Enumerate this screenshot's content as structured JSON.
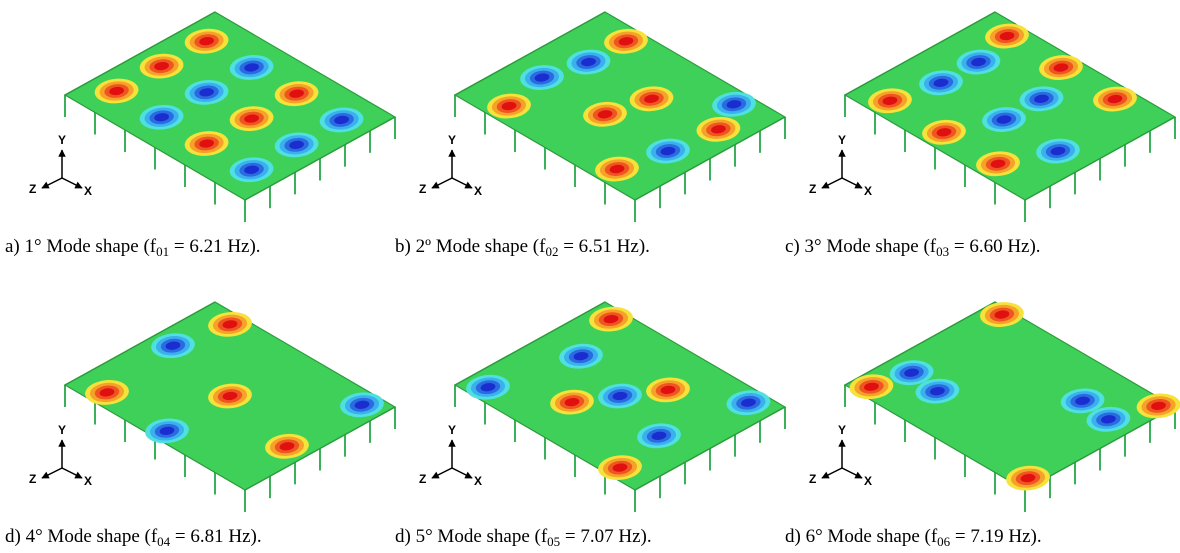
{
  "panels": [
    {
      "caption_prefix": "a) 1° Mode shape (f",
      "caption_sub": "01",
      "caption_suffix": " = 6.21 Hz)."
    },
    {
      "caption_prefix": "b) 2º Mode shape (f",
      "caption_sub": "02",
      "caption_suffix": " = 6.51 Hz)."
    },
    {
      "caption_prefix": "c) 3° Mode shape (f",
      "caption_sub": "03",
      "caption_suffix": " = 6.60 Hz)."
    },
    {
      "caption_prefix": "d) 4° Mode shape (f",
      "caption_sub": "04",
      "caption_suffix": " = 6.81 Hz)."
    },
    {
      "caption_prefix": "d) 5° Mode shape (f",
      "caption_sub": "05",
      "caption_suffix": " = 7.07 Hz)."
    },
    {
      "caption_prefix": "d) 6° Mode shape (f",
      "caption_sub": "06",
      "caption_suffix": " = 7.19 Hz)."
    }
  ],
  "axes": {
    "y": "Y",
    "z": "Z",
    "x": "X"
  }
}
